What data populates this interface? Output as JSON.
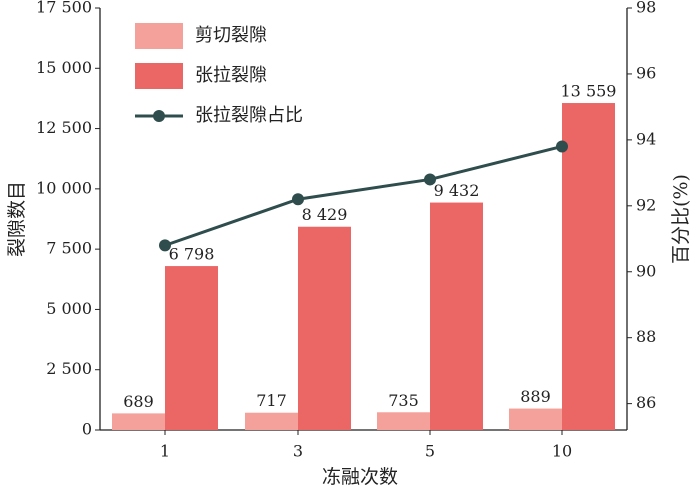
{
  "chart_data": {
    "type": "bar_line",
    "x_label": "冻融次数",
    "y_label": "裂隙数目",
    "y2_label": "百分比(%)",
    "categories": [
      "1",
      "3",
      "5",
      "10"
    ],
    "series": [
      {
        "name": "剪切裂隙",
        "type": "bar",
        "color": "#f4a19b",
        "values": [
          689,
          717,
          735,
          889
        ],
        "value_labels": [
          "689",
          "717",
          "735",
          "889"
        ]
      },
      {
        "name": "张拉裂隙",
        "type": "bar",
        "color": "#ea6765",
        "values": [
          6798,
          8429,
          9432,
          13559
        ],
        "value_labels": [
          "6 798",
          "8 429",
          "9 432",
          "13 559"
        ]
      },
      {
        "name": "张拉裂隙占比",
        "type": "line",
        "color": "#2f4d4d",
        "axis": "y2",
        "values": [
          90.8,
          92.2,
          92.8,
          93.8
        ]
      }
    ],
    "ylim": [
      0,
      17500
    ],
    "yticks": [
      0,
      {
        "value": 2500,
        "label": "2 500"
      },
      {
        "value": 5000,
        "label": "5 000"
      },
      {
        "value": 7500,
        "label": "7 500"
      },
      {
        "value": 10000,
        "label": "10 000"
      },
      {
        "value": 12500,
        "label": "12 500"
      },
      {
        "value": 15000,
        "label": "15 000"
      },
      {
        "value": 17500,
        "label": "17 500"
      }
    ],
    "y2lim": [
      85.2,
      98
    ],
    "y2ticks": [
      86,
      88,
      90,
      92,
      94,
      96,
      98
    ],
    "legend": "upper left"
  }
}
